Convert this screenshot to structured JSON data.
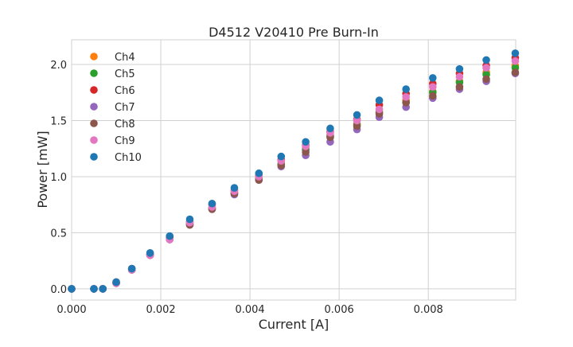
{
  "chart_data": {
    "type": "scatter",
    "title": "D4512 V20410 Pre Burn-In",
    "xlabel": "Current [A]",
    "ylabel": "Power [mW]",
    "xlim": [
      0,
      0.00996
    ],
    "ylim": [
      -0.1,
      2.22
    ],
    "grid": true,
    "legend_placement": "top-left",
    "x_ticks": [
      0,
      0.002,
      0.004,
      0.006,
      0.008
    ],
    "x_tick_labels": [
      "0.000",
      "0.002",
      "0.004",
      "0.006",
      "0.008"
    ],
    "y_ticks": [
      0,
      0.5,
      1.0,
      1.5,
      2.0
    ],
    "y_tick_labels": [
      "0.0",
      "0.5",
      "1.0",
      "1.5",
      "2.0"
    ],
    "x": [
      0,
      0.0005,
      0.0007,
      0.001,
      0.00135,
      0.00176,
      0.0022,
      0.00265,
      0.00315,
      0.00365,
      0.0042,
      0.0047,
      0.00525,
      0.0058,
      0.0064,
      0.0069,
      0.0075,
      0.0081,
      0.0087,
      0.0093,
      0.00995
    ],
    "series": [
      {
        "name": "Ch4",
        "color": "#ff7f0e",
        "values": [
          0,
          0,
          0,
          0.05,
          0.17,
          0.3,
          0.45,
          0.58,
          0.72,
          0.86,
          0.99,
          1.12,
          1.25,
          1.37,
          1.47,
          1.58,
          1.68,
          1.76,
          1.85,
          1.93,
          1.99
        ]
      },
      {
        "name": "Ch5",
        "color": "#2ca02c",
        "values": [
          0,
          0,
          0,
          0.05,
          0.17,
          0.3,
          0.45,
          0.58,
          0.72,
          0.85,
          0.98,
          1.11,
          1.24,
          1.36,
          1.46,
          1.57,
          1.66,
          1.75,
          1.84,
          1.91,
          1.97
        ]
      },
      {
        "name": "Ch6",
        "color": "#d62728",
        "values": [
          0,
          0,
          0,
          0.06,
          0.18,
          0.31,
          0.46,
          0.6,
          0.75,
          0.88,
          1.01,
          1.15,
          1.28,
          1.4,
          1.51,
          1.64,
          1.74,
          1.83,
          1.92,
          1.99,
          2.06
        ]
      },
      {
        "name": "Ch7",
        "color": "#9467bd",
        "values": [
          0,
          0,
          0,
          0.05,
          0.17,
          0.3,
          0.44,
          0.57,
          0.71,
          0.84,
          0.97,
          1.09,
          1.19,
          1.31,
          1.42,
          1.53,
          1.62,
          1.7,
          1.78,
          1.85,
          1.92
        ]
      },
      {
        "name": "Ch8",
        "color": "#8c564b",
        "values": [
          0,
          0,
          0,
          0.05,
          0.17,
          0.3,
          0.44,
          0.57,
          0.71,
          0.85,
          0.97,
          1.1,
          1.22,
          1.35,
          1.45,
          1.56,
          1.66,
          1.72,
          1.8,
          1.87,
          1.93
        ]
      },
      {
        "name": "Ch9",
        "color": "#e377c2",
        "values": [
          0,
          0,
          0,
          0.05,
          0.17,
          0.3,
          0.44,
          0.59,
          0.73,
          0.87,
          1.0,
          1.14,
          1.27,
          1.39,
          1.5,
          1.6,
          1.71,
          1.8,
          1.89,
          1.97,
          2.03
        ]
      },
      {
        "name": "Ch10",
        "color": "#1f77b4",
        "values": [
          0,
          0,
          0,
          0.06,
          0.18,
          0.32,
          0.47,
          0.62,
          0.76,
          0.9,
          1.03,
          1.18,
          1.31,
          1.43,
          1.55,
          1.68,
          1.78,
          1.88,
          1.96,
          2.04,
          2.1
        ]
      }
    ]
  }
}
